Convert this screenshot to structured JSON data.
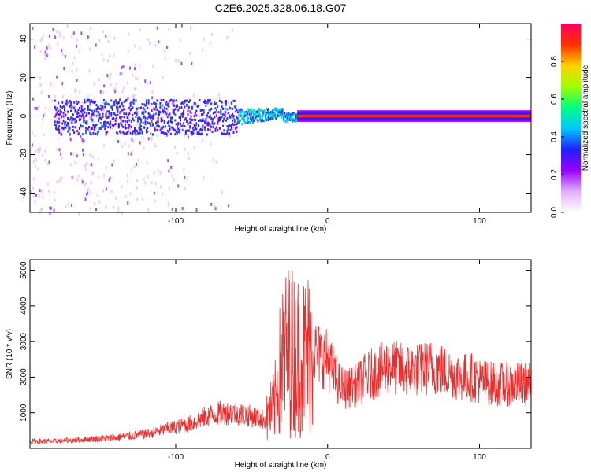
{
  "title": "C2E6.2025.328.06.18.G07",
  "chart_data": [
    {
      "type": "heatmap",
      "name": "spectrogram",
      "xlabel": "Height of straight line (km)",
      "ylabel": "Frequency (Hz)",
      "xlim": [
        -196,
        134
      ],
      "ylim": [
        -50,
        48
      ],
      "xticks": [
        -100,
        0,
        100
      ],
      "yticks": [
        -40,
        -20,
        0,
        20,
        40
      ],
      "colorbar": {
        "label": "Normalized spectral amplitude",
        "range": [
          0.0,
          1.0
        ],
        "ticks": [
          "0.0",
          "0.2",
          "0.4",
          "0.6",
          "0.8"
        ],
        "colors": [
          "#ffffff",
          "#e0b0ff",
          "#9900ff",
          "#2020ff",
          "#00c8ff",
          "#00ff80",
          "#a0ff00",
          "#ffd000",
          "#ff3000",
          "#ff0060"
        ]
      },
      "features": [
        {
          "x_range": [
            -196,
            -150
          ],
          "freq_range": [
            -50,
            48
          ],
          "amplitude": 0.1,
          "note": "broadband noise"
        },
        {
          "x_range": [
            -180,
            -60
          ],
          "freq_range": [
            -10,
            10
          ],
          "amplitude": 0.3
        },
        {
          "x_range": [
            -60,
            -20
          ],
          "freq_range": [
            -4,
            5
          ],
          "amplitude": 0.5
        },
        {
          "x_range": [
            -20,
            134
          ],
          "freq_range": [
            -1,
            1
          ],
          "amplitude": 0.9,
          "note": "narrow carrier line"
        }
      ]
    },
    {
      "type": "line",
      "name": "snr",
      "xlabel": "Height of straight line (km)",
      "ylabel": "SNR (10 * v/v)",
      "xlim": [
        -196,
        134
      ],
      "ylim": [
        0,
        5300
      ],
      "xticks": [
        -100,
        0,
        100
      ],
      "yticks": [
        1000,
        2000,
        3000,
        4000,
        5000
      ],
      "color": "#ee2c2c",
      "series": [
        {
          "name": "SNR",
          "x": [
            -196,
            -180,
            -160,
            -140,
            -120,
            -100,
            -90,
            -80,
            -70,
            -60,
            -50,
            -40,
            -35,
            -30,
            -25,
            -20,
            -15,
            -10,
            -5,
            0,
            5,
            10,
            15,
            20,
            25,
            30,
            35,
            40,
            50,
            60,
            70,
            80,
            90,
            95,
            100,
            110,
            120,
            134
          ],
          "y": [
            200,
            200,
            250,
            300,
            400,
            600,
            700,
            900,
            1000,
            1000,
            900,
            800,
            1200,
            2500,
            2800,
            2600,
            2600,
            2800,
            2600,
            2500,
            2000,
            1700,
            1700,
            1800,
            2000,
            2100,
            2200,
            2300,
            2200,
            2200,
            2300,
            2100,
            2000,
            2000,
            1900,
            1800,
            1800,
            1800
          ]
        }
      ]
    }
  ]
}
